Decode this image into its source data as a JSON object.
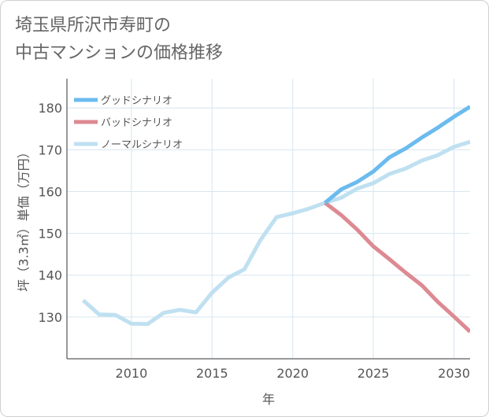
{
  "title_lines": [
    "埼玉県所沢市寿町の",
    "中古マンションの価格推移"
  ],
  "chart_data": {
    "type": "line",
    "xlabel": "年",
    "ylabel": "坪（3.3㎡）単価（万円）",
    "xlim": [
      2006,
      2031
    ],
    "ylim": [
      120,
      187
    ],
    "x_ticks": [
      2010,
      2015,
      2020,
      2025,
      2030
    ],
    "y_ticks": [
      130,
      140,
      150,
      160,
      170,
      180
    ],
    "grid": true,
    "legend_position": "top-left",
    "series": [
      {
        "name": "グッドシナリオ",
        "color": "#6bbbee",
        "x": [
          2022,
          2023,
          2024,
          2025,
          2026,
          2027,
          2028,
          2029,
          2030,
          2031
        ],
        "y": [
          157.3,
          160.5,
          162.3,
          164.8,
          168.2,
          170.3,
          172.9,
          175.3,
          177.9,
          180.3
        ]
      },
      {
        "name": "バッドシナリオ",
        "color": "#dd8a93",
        "x": [
          2022,
          2023,
          2024,
          2025,
          2026,
          2027,
          2028,
          2029,
          2030,
          2031
        ],
        "y": [
          157.3,
          154.4,
          150.9,
          146.9,
          143.8,
          140.6,
          137.6,
          133.6,
          130.1,
          126.5
        ]
      },
      {
        "name": "ノーマルシナリオ",
        "color": "#bfe0f0",
        "x": [
          2007,
          2008,
          2009,
          2010,
          2011,
          2012,
          2013,
          2014,
          2015,
          2016,
          2017,
          2018,
          2019,
          2020,
          2021,
          2022,
          2023,
          2024,
          2025,
          2026,
          2027,
          2028,
          2029,
          2030,
          2031
        ],
        "y": [
          134.0,
          130.6,
          130.5,
          128.4,
          128.3,
          131.0,
          131.7,
          131.1,
          135.8,
          139.4,
          141.4,
          148.4,
          153.9,
          154.8,
          155.9,
          157.3,
          158.5,
          160.7,
          162.0,
          164.2,
          165.5,
          167.4,
          168.7,
          170.7,
          171.9
        ]
      }
    ]
  }
}
